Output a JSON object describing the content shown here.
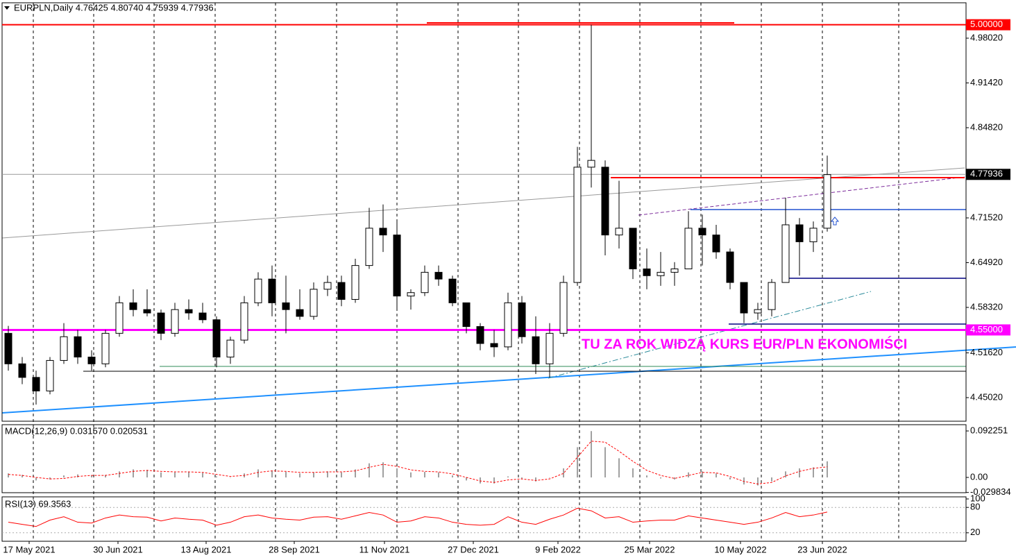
{
  "chart_data": [
    {
      "type": "candlestick",
      "title": "EURPLN,Daily  4.76425 4.80740 4.75939 4.77936",
      "annotation": "TU ZA ROK WIDZĄ KURS EUR/PLN EKONOMIŚCI",
      "up_color": "#ffffff",
      "down_color": "#000000",
      "wick_color": "#000000",
      "open": [
        4.545,
        4.5,
        4.48,
        4.46,
        4.505,
        4.54,
        4.51,
        4.5,
        4.545,
        4.59,
        4.58,
        4.575,
        4.545,
        4.58,
        4.575,
        4.565,
        4.51,
        4.535,
        4.59,
        4.625,
        4.59,
        4.58,
        4.57,
        4.61,
        4.62,
        4.595,
        4.645,
        4.7,
        4.69,
        4.6,
        4.605,
        4.635,
        4.625,
        4.59,
        4.555,
        4.53,
        4.525,
        4.59,
        4.54,
        4.5,
        4.545,
        4.62,
        4.79,
        4.79,
        4.69,
        4.7,
        4.64,
        4.63,
        4.635,
        4.64,
        4.7,
        4.69,
        4.665,
        4.62,
        4.575,
        4.58,
        4.62,
        4.705,
        4.68,
        4.7
      ],
      "high": [
        4.556,
        4.51,
        4.49,
        4.51,
        4.56,
        4.55,
        4.52,
        4.55,
        4.6,
        4.61,
        4.61,
        4.58,
        4.59,
        4.595,
        4.59,
        4.57,
        4.54,
        4.6,
        4.635,
        4.645,
        4.63,
        4.61,
        4.62,
        4.63,
        4.63,
        4.655,
        4.73,
        4.735,
        4.71,
        4.61,
        4.645,
        4.645,
        4.63,
        4.59,
        4.56,
        4.55,
        4.605,
        4.6,
        4.57,
        4.56,
        4.63,
        4.82,
        5.0,
        4.8,
        4.77,
        4.7,
        4.67,
        4.665,
        4.65,
        4.725,
        4.72,
        4.705,
        4.67,
        4.62,
        4.59,
        4.625,
        4.745,
        4.715,
        4.71,
        4.807
      ],
      "low": [
        4.49,
        4.47,
        4.44,
        4.455,
        4.5,
        4.5,
        4.49,
        4.495,
        4.54,
        4.57,
        4.57,
        4.535,
        4.54,
        4.565,
        4.56,
        4.495,
        4.5,
        4.53,
        4.585,
        4.57,
        4.545,
        4.565,
        4.565,
        4.6,
        4.585,
        4.59,
        4.64,
        4.665,
        4.58,
        4.58,
        4.6,
        4.615,
        4.585,
        4.545,
        4.52,
        4.51,
        4.52,
        4.53,
        4.485,
        4.48,
        4.54,
        4.615,
        4.76,
        4.66,
        4.67,
        4.625,
        4.61,
        4.615,
        4.615,
        4.64,
        4.645,
        4.655,
        4.61,
        4.56,
        4.565,
        4.57,
        4.62,
        4.63,
        4.665,
        4.695
      ],
      "close": [
        4.5,
        4.48,
        4.46,
        4.505,
        4.54,
        4.51,
        4.5,
        4.545,
        4.59,
        4.58,
        4.575,
        4.545,
        4.58,
        4.575,
        4.565,
        4.51,
        4.535,
        4.59,
        4.625,
        4.59,
        4.58,
        4.57,
        4.61,
        4.62,
        4.595,
        4.645,
        4.7,
        4.69,
        4.6,
        4.605,
        4.635,
        4.625,
        4.59,
        4.555,
        4.53,
        4.525,
        4.59,
        4.54,
        4.5,
        4.545,
        4.62,
        4.79,
        4.8,
        4.69,
        4.7,
        4.64,
        4.63,
        4.635,
        4.64,
        4.7,
        4.69,
        4.665,
        4.62,
        4.575,
        4.58,
        4.62,
        4.705,
        4.68,
        4.7,
        4.779
      ],
      "xticks": [
        {
          "value": 1.5,
          "label": "17 May 2021"
        },
        {
          "value": 7.9,
          "label": "30 Jun 2021"
        },
        {
          "value": 14.25,
          "label": "13 Aug 2021"
        },
        {
          "value": 20.6,
          "label": "28 Sep 2021"
        },
        {
          "value": 27.1,
          "label": "11 Nov 2021"
        },
        {
          "value": 33.5,
          "label": "27 Dec 2021"
        },
        {
          "value": 39.6,
          "label": "9 Feb 2022"
        },
        {
          "value": 46.2,
          "label": "25 Mar 2022"
        },
        {
          "value": 52.75,
          "label": "10 May 2022"
        },
        {
          "value": 58.65,
          "label": "23 Jun 2022"
        }
      ],
      "ylim": [
        4.4154,
        5.0324
      ],
      "yticks": [
        {
          "value": 4.9802,
          "label": "4.98020"
        },
        {
          "value": 4.9142,
          "label": "4.91420"
        },
        {
          "value": 4.8482,
          "label": "4.84820"
        },
        {
          "value": 4.7152,
          "label": "4.71520"
        },
        {
          "value": 4.6492,
          "label": "4.64920"
        },
        {
          "value": 4.5832,
          "label": "4.58320"
        },
        {
          "value": 4.5162,
          "label": "4.51620"
        },
        {
          "value": 4.4502,
          "label": "4.45020"
        }
      ],
      "levels": [
        {
          "value": 5,
          "label": "5.00000",
          "color": "#ff0000"
        },
        {
          "value": 4.77936,
          "label": "4.77936",
          "color": "#000000"
        },
        {
          "value": 4.55,
          "label": "4.55000",
          "color": "#ff00ff"
        }
      ]
    },
    {
      "type": "macd",
      "title": "MACD(12,26,9) 0.031570 0.020531",
      "histogram_color": "#a0a0a0",
      "signal_color": "#ff0000",
      "histogram": [
        0.008,
        0.005,
        -0.006,
        -0.004,
        0.004,
        0.006,
        0.004,
        0.005,
        0.012,
        0.016,
        0.015,
        0.01,
        0.01,
        0.011,
        0.009,
        0.002,
        0.0,
        0.008,
        0.016,
        0.014,
        0.011,
        0.008,
        0.01,
        0.012,
        0.01,
        0.016,
        0.028,
        0.03,
        0.018,
        0.01,
        0.011,
        0.01,
        0.004,
        -0.006,
        -0.012,
        -0.012,
        0.002,
        -0.002,
        -0.008,
        0.0,
        0.018,
        0.06,
        0.092,
        0.06,
        0.038,
        0.018,
        0.004,
        -0.002,
        -0.004,
        0.01,
        0.012,
        0.008,
        -0.004,
        -0.014,
        -0.016,
        -0.008,
        0.012,
        0.018,
        0.02,
        0.032
      ],
      "signal": [
        0.006,
        0.004,
        0.0,
        -0.003,
        -0.002,
        0.002,
        0.004,
        0.004,
        0.008,
        0.012,
        0.014,
        0.012,
        0.011,
        0.011,
        0.01,
        0.006,
        0.002,
        0.004,
        0.01,
        0.013,
        0.012,
        0.01,
        0.01,
        0.011,
        0.011,
        0.013,
        0.02,
        0.026,
        0.022,
        0.015,
        0.012,
        0.011,
        0.007,
        0.0,
        -0.007,
        -0.01,
        -0.005,
        -0.003,
        -0.006,
        -0.003,
        0.008,
        0.04,
        0.072,
        0.07,
        0.052,
        0.032,
        0.014,
        0.004,
        -0.002,
        0.004,
        0.01,
        0.009,
        0.002,
        -0.008,
        -0.013,
        -0.01,
        0.003,
        0.012,
        0.018,
        0.021
      ],
      "ylim": [
        -0.0303,
        0.1047
      ],
      "yticks": [
        0.092251,
        {
          "value": 0,
          "label": "0.00"
        },
        -0.029834
      ]
    },
    {
      "type": "line",
      "title": "RSI(13) 69.3563",
      "color": "#ff0000",
      "values": [
        45,
        40,
        35,
        50,
        58,
        45,
        43,
        55,
        62,
        58,
        57,
        48,
        55,
        52,
        50,
        38,
        45,
        58,
        62,
        55,
        52,
        50,
        57,
        58,
        52,
        60,
        68,
        62,
        45,
        48,
        58,
        55,
        45,
        40,
        38,
        40,
        58,
        45,
        40,
        52,
        62,
        78,
        72,
        55,
        58,
        45,
        48,
        50,
        50,
        60,
        55,
        50,
        45,
        40,
        45,
        55,
        68,
        58,
        62,
        69
      ],
      "ylim": [
        0,
        100
      ],
      "yticks": [
        100,
        80,
        20
      ]
    }
  ]
}
